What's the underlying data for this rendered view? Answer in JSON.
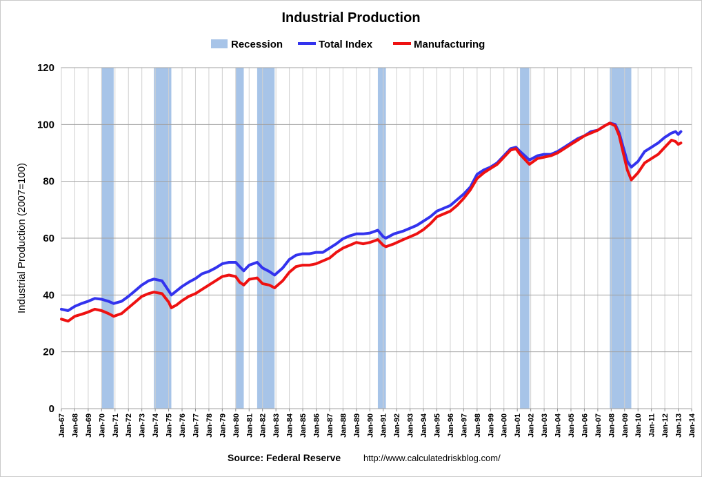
{
  "chart_data": {
    "type": "line",
    "title": "Industrial Production",
    "ylabel": "Industrial Production (2007=100)",
    "xlabel": "",
    "ylim": [
      0,
      120
    ],
    "yticks": [
      0,
      20,
      40,
      60,
      80,
      100,
      120
    ],
    "xlim": [
      "Jan-67",
      "Jan-14"
    ],
    "xtick_labels": [
      "Jan-67",
      "Jan-68",
      "Jan-69",
      "Jan-70",
      "Jan-71",
      "Jan-72",
      "Jan-73",
      "Jan-74",
      "Jan-75",
      "Jan-76",
      "Jan-77",
      "Jan-78",
      "Jan-79",
      "Jan-80",
      "Jan-81",
      "Jan-82",
      "Jan-83",
      "Jan-84",
      "Jan-85",
      "Jan-86",
      "Jan-87",
      "Jan-88",
      "Jan-89",
      "Jan-90",
      "Jan-91",
      "Jan-92",
      "Jan-93",
      "Jan-94",
      "Jan-95",
      "Jan-96",
      "Jan-97",
      "Jan-98",
      "Jan-99",
      "Jan-00",
      "Jan-01",
      "Jan-02",
      "Jan-03",
      "Jan-04",
      "Jan-05",
      "Jan-06",
      "Jan-07",
      "Jan-08",
      "Jan-09",
      "Jan-10",
      "Jan-11",
      "Jan-12",
      "Jan-13",
      "Jan-14"
    ],
    "grid": true,
    "legend_placement": "top-center",
    "legend": [
      "Recession",
      "Total Index",
      "Manufacturing"
    ],
    "recession_label": "Recession",
    "recession_color": "#a7c4e8",
    "recessions": [
      {
        "start": 1970.0,
        "end": 1970.9
      },
      {
        "start": 1973.9,
        "end": 1975.2
      },
      {
        "start": 1980.0,
        "end": 1980.6
      },
      {
        "start": 1981.6,
        "end": 1982.9
      },
      {
        "start": 1990.6,
        "end": 1991.2
      },
      {
        "start": 2001.2,
        "end": 2001.9
      },
      {
        "start": 2007.9,
        "end": 2009.5
      }
    ],
    "series": [
      {
        "name": "Total Index",
        "color": "#3333ee",
        "points": [
          [
            1967.0,
            35
          ],
          [
            1967.5,
            34.5
          ],
          [
            1968.0,
            36
          ],
          [
            1968.5,
            37
          ],
          [
            1969.0,
            37.8
          ],
          [
            1969.5,
            38.8
          ],
          [
            1970.0,
            38.5
          ],
          [
            1970.5,
            37.8
          ],
          [
            1970.9,
            37
          ],
          [
            1971.5,
            37.8
          ],
          [
            1972.0,
            39.5
          ],
          [
            1972.5,
            41.5
          ],
          [
            1973.0,
            43.5
          ],
          [
            1973.5,
            45
          ],
          [
            1973.9,
            45.6
          ],
          [
            1974.5,
            45
          ],
          [
            1975.0,
            41.5
          ],
          [
            1975.2,
            40
          ],
          [
            1975.6,
            41.5
          ],
          [
            1976.0,
            43
          ],
          [
            1976.5,
            44.5
          ],
          [
            1977.0,
            45.8
          ],
          [
            1977.5,
            47.5
          ],
          [
            1978.0,
            48.3
          ],
          [
            1978.5,
            49.5
          ],
          [
            1979.0,
            51
          ],
          [
            1979.5,
            51.5
          ],
          [
            1980.0,
            51.5
          ],
          [
            1980.3,
            50
          ],
          [
            1980.6,
            48.5
          ],
          [
            1981.0,
            50.5
          ],
          [
            1981.6,
            51.5
          ],
          [
            1982.0,
            49.5
          ],
          [
            1982.5,
            48.3
          ],
          [
            1982.9,
            47
          ],
          [
            1983.5,
            49.5
          ],
          [
            1984.0,
            52.5
          ],
          [
            1984.5,
            54
          ],
          [
            1985.0,
            54.5
          ],
          [
            1985.5,
            54.5
          ],
          [
            1986.0,
            55
          ],
          [
            1986.5,
            55
          ],
          [
            1987.0,
            56.5
          ],
          [
            1987.5,
            58
          ],
          [
            1988.0,
            59.8
          ],
          [
            1988.5,
            60.8
          ],
          [
            1989.0,
            61.5
          ],
          [
            1989.5,
            61.5
          ],
          [
            1990.0,
            61.8
          ],
          [
            1990.6,
            62.8
          ],
          [
            1991.0,
            60.5
          ],
          [
            1991.2,
            60
          ],
          [
            1991.8,
            61.5
          ],
          [
            1992.5,
            62.5
          ],
          [
            1993.0,
            63.5
          ],
          [
            1993.5,
            64.5
          ],
          [
            1994.0,
            66
          ],
          [
            1994.5,
            67.5
          ],
          [
            1995.0,
            69.5
          ],
          [
            1995.5,
            70.5
          ],
          [
            1996.0,
            71.5
          ],
          [
            1996.5,
            73.5
          ],
          [
            1997.0,
            75.5
          ],
          [
            1997.5,
            78
          ],
          [
            1998.0,
            82.5
          ],
          [
            1998.5,
            84
          ],
          [
            1999.0,
            85
          ],
          [
            1999.5,
            86.5
          ],
          [
            2000.0,
            89
          ],
          [
            2000.5,
            91.5
          ],
          [
            2000.9,
            92
          ],
          [
            2001.2,
            90.5
          ],
          [
            2001.9,
            87.5
          ],
          [
            2002.5,
            89
          ],
          [
            2003.0,
            89.5
          ],
          [
            2003.5,
            89.5
          ],
          [
            2004.0,
            90.5
          ],
          [
            2004.5,
            92
          ],
          [
            2005.0,
            93.5
          ],
          [
            2005.5,
            95
          ],
          [
            2006.0,
            96
          ],
          [
            2006.5,
            97.5
          ],
          [
            2007.0,
            98
          ],
          [
            2007.5,
            99.5
          ],
          [
            2007.9,
            100.5
          ],
          [
            2008.3,
            100
          ],
          [
            2008.6,
            97
          ],
          [
            2008.9,
            92
          ],
          [
            2009.2,
            87
          ],
          [
            2009.5,
            85
          ],
          [
            2010.0,
            87
          ],
          [
            2010.5,
            90.5
          ],
          [
            2011.0,
            92
          ],
          [
            2011.5,
            93.5
          ],
          [
            2012.0,
            95.5
          ],
          [
            2012.5,
            97
          ],
          [
            2012.8,
            97.5
          ],
          [
            2013.0,
            96.5
          ],
          [
            2013.2,
            97.5
          ]
        ]
      },
      {
        "name": "Manufacturing",
        "color": "#ee1111",
        "points": [
          [
            1967.0,
            31.5
          ],
          [
            1967.5,
            30.8
          ],
          [
            1968.0,
            32.5
          ],
          [
            1968.5,
            33.2
          ],
          [
            1969.0,
            34
          ],
          [
            1969.5,
            35
          ],
          [
            1970.0,
            34.5
          ],
          [
            1970.5,
            33.5
          ],
          [
            1970.9,
            32.5
          ],
          [
            1971.5,
            33.5
          ],
          [
            1972.0,
            35.5
          ],
          [
            1972.5,
            37.5
          ],
          [
            1973.0,
            39.5
          ],
          [
            1973.5,
            40.5
          ],
          [
            1973.9,
            41
          ],
          [
            1974.5,
            40.5
          ],
          [
            1975.0,
            37.5
          ],
          [
            1975.2,
            35.5
          ],
          [
            1975.6,
            36.5
          ],
          [
            1976.0,
            38
          ],
          [
            1976.5,
            39.5
          ],
          [
            1977.0,
            40.5
          ],
          [
            1977.5,
            42
          ],
          [
            1978.0,
            43.5
          ],
          [
            1978.5,
            45
          ],
          [
            1979.0,
            46.5
          ],
          [
            1979.5,
            47
          ],
          [
            1980.0,
            46.5
          ],
          [
            1980.3,
            44.5
          ],
          [
            1980.6,
            43.5
          ],
          [
            1981.0,
            45.5
          ],
          [
            1981.6,
            46
          ],
          [
            1982.0,
            44
          ],
          [
            1982.5,
            43.5
          ],
          [
            1982.9,
            42.5
          ],
          [
            1983.5,
            45
          ],
          [
            1984.0,
            48
          ],
          [
            1984.5,
            50
          ],
          [
            1985.0,
            50.5
          ],
          [
            1985.5,
            50.5
          ],
          [
            1986.0,
            51
          ],
          [
            1986.5,
            52
          ],
          [
            1987.0,
            53
          ],
          [
            1987.5,
            55
          ],
          [
            1988.0,
            56.5
          ],
          [
            1988.5,
            57.5
          ],
          [
            1989.0,
            58.5
          ],
          [
            1989.5,
            58
          ],
          [
            1990.0,
            58.5
          ],
          [
            1990.6,
            59.5
          ],
          [
            1991.0,
            57.5
          ],
          [
            1991.2,
            57
          ],
          [
            1991.8,
            58
          ],
          [
            1992.5,
            59.5
          ],
          [
            1993.0,
            60.5
          ],
          [
            1993.5,
            61.5
          ],
          [
            1994.0,
            63
          ],
          [
            1994.5,
            65
          ],
          [
            1995.0,
            67.5
          ],
          [
            1995.5,
            68.5
          ],
          [
            1996.0,
            69.5
          ],
          [
            1996.5,
            71.5
          ],
          [
            1997.0,
            74
          ],
          [
            1997.5,
            77
          ],
          [
            1998.0,
            81
          ],
          [
            1998.5,
            83
          ],
          [
            1999.0,
            84.5
          ],
          [
            1999.5,
            86
          ],
          [
            2000.0,
            88.5
          ],
          [
            2000.5,
            91
          ],
          [
            2000.9,
            91.5
          ],
          [
            2001.2,
            89.5
          ],
          [
            2001.9,
            86
          ],
          [
            2002.5,
            88
          ],
          [
            2003.0,
            88.5
          ],
          [
            2003.5,
            89
          ],
          [
            2004.0,
            90
          ],
          [
            2004.5,
            91.5
          ],
          [
            2005.0,
            93
          ],
          [
            2005.5,
            94.5
          ],
          [
            2006.0,
            96
          ],
          [
            2006.5,
            97
          ],
          [
            2007.0,
            98
          ],
          [
            2007.5,
            99.5
          ],
          [
            2007.9,
            100.5
          ],
          [
            2008.3,
            99.5
          ],
          [
            2008.6,
            96
          ],
          [
            2008.9,
            90
          ],
          [
            2009.2,
            84
          ],
          [
            2009.5,
            80.5
          ],
          [
            2010.0,
            83
          ],
          [
            2010.5,
            86.5
          ],
          [
            2011.0,
            88
          ],
          [
            2011.5,
            89.5
          ],
          [
            2012.0,
            92
          ],
          [
            2012.5,
            94.5
          ],
          [
            2012.8,
            94
          ],
          [
            2013.0,
            93
          ],
          [
            2013.2,
            93.5
          ]
        ]
      }
    ]
  },
  "source": {
    "label": "Source: Federal Reserve",
    "url": "http://www.calculatedriskblog.com/"
  }
}
